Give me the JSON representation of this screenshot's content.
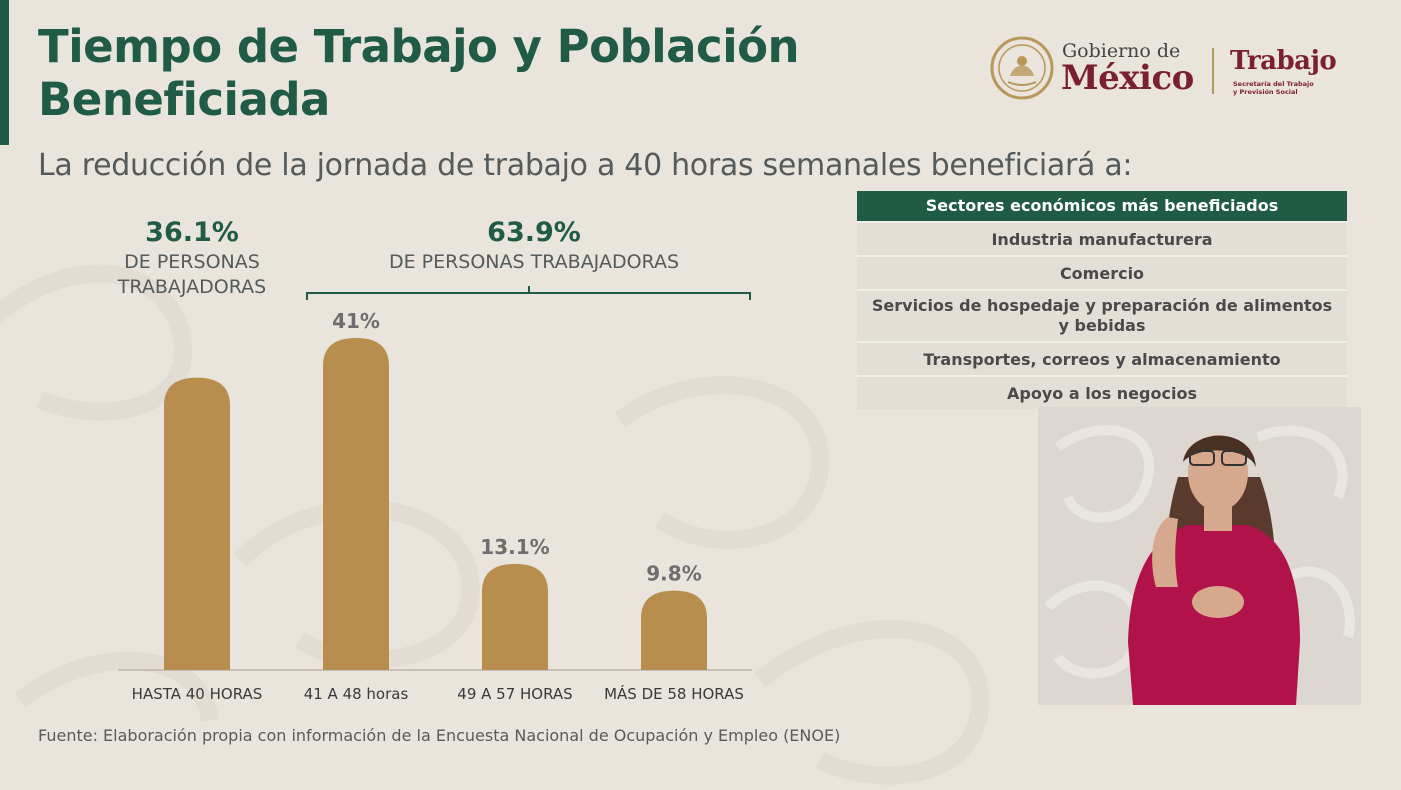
{
  "title": "Tiempo de Trabajo y Población Beneficiada",
  "subtitle": "La reducción de la jornada de trabajo a 40 horas semanales beneficiará a:",
  "logo": {
    "gobierno_line1": "Gobierno de",
    "gobierno_line2": "México",
    "trabajo": "Trabajo",
    "trabajo_sub1": "Secretaría del Trabajo",
    "trabajo_sub2": "y Previsión Social",
    "colors": {
      "green": "#1f5b45",
      "guinda": "#7b1f32",
      "gold": "#b8985a"
    }
  },
  "group_left": {
    "percent": "36.1%",
    "line1": "DE PERSONAS",
    "line2": "TRABAJADORAS"
  },
  "group_right": {
    "percent": "63.9%",
    "line1": "DE PERSONAS TRABAJADORAS"
  },
  "chart_data": {
    "type": "bar",
    "categories": [
      "HASTA 40 HORAS",
      "41 A 48 horas",
      "49 A 57 HORAS",
      "MÁS DE 58 HORAS"
    ],
    "values": [
      36.1,
      41,
      13.1,
      9.8
    ],
    "data_labels": [
      "",
      "41%",
      "13.1%",
      "9.8%"
    ],
    "ylim": [
      0,
      41
    ],
    "bar_color": "#b78e4e"
  },
  "table": {
    "header": "Sectores económicos más beneficiados",
    "rows": [
      "Industria manufacturera",
      "Comercio",
      "Servicios de hospedaje y preparación de alimentos y bebidas",
      "Transportes, correos y almacenamiento",
      "Apoyo a los negocios"
    ],
    "header_color": "#1f5b45"
  },
  "source": "Fuente: Elaboración propia con información de la Encuesta Nacional de Ocupación y Empleo (ENOE)"
}
